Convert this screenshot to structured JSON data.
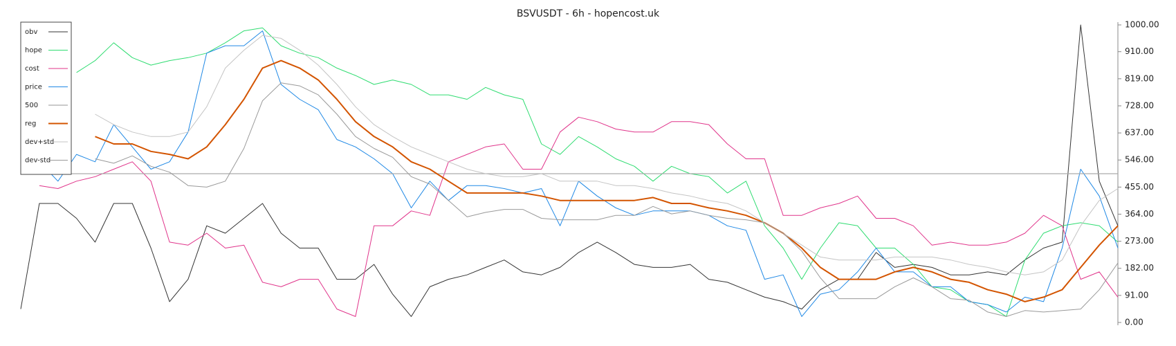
{
  "chart_data": {
    "type": "line",
    "title": "BSVUSDT - 6h - hopencost.uk",
    "ylim": [
      0,
      1000
    ],
    "yticks": [
      {
        "value": 0,
        "label": "0.00"
      },
      {
        "value": 91,
        "label": "91.00"
      },
      {
        "value": 182,
        "label": "182.00"
      },
      {
        "value": 273,
        "label": "273.00"
      },
      {
        "value": 364,
        "label": "364.00"
      },
      {
        "value": 455,
        "label": "455.00"
      },
      {
        "value": 546,
        "label": "546.00"
      },
      {
        "value": 637,
        "label": "637.00"
      },
      {
        "value": 728,
        "label": "728.00"
      },
      {
        "value": 819,
        "label": "819.00"
      },
      {
        "value": 910,
        "label": "910.00"
      },
      {
        "value": 1000,
        "label": "1000.00"
      }
    ],
    "y_axis_side": "right",
    "grid": false,
    "legend": "top-left",
    "series": [
      {
        "name": "obv",
        "color": "#333333",
        "width": 1,
        "values": [
          45,
          400,
          400,
          350,
          270,
          400,
          400,
          250,
          70,
          145,
          325,
          300,
          350,
          400,
          300,
          250,
          250,
          145,
          145,
          195,
          95,
          20,
          120,
          145,
          160,
          185,
          210,
          170,
          160,
          185,
          235,
          270,
          235,
          195,
          185,
          185,
          195,
          145,
          135,
          110,
          85,
          70,
          45,
          110,
          145,
          145,
          235,
          185,
          195,
          185,
          160,
          160,
          170,
          160,
          210,
          250,
          270,
          1000,
          475,
          325
        ]
      },
      {
        "name": "hope",
        "color": "#2edc70",
        "width": 1,
        "values": [
          null,
          null,
          null,
          840,
          880,
          940,
          890,
          865,
          880,
          890,
          905,
          940,
          980,
          990,
          930,
          905,
          890,
          855,
          830,
          800,
          815,
          800,
          765,
          765,
          750,
          790,
          765,
          750,
          600,
          565,
          625,
          590,
          550,
          525,
          475,
          525,
          500,
          490,
          435,
          475,
          325,
          250,
          145,
          250,
          335,
          325,
          250,
          250,
          195,
          120,
          110,
          70,
          60,
          20,
          210,
          300,
          325,
          335,
          325,
          270
        ]
      },
      {
        "name": "cost",
        "color": "#e0338a",
        "width": 1,
        "values": [
          null,
          460,
          450,
          475,
          490,
          515,
          540,
          475,
          270,
          260,
          300,
          250,
          260,
          135,
          120,
          145,
          145,
          45,
          20,
          325,
          325,
          375,
          360,
          540,
          565,
          590,
          600,
          515,
          515,
          640,
          690,
          675,
          650,
          640,
          640,
          675,
          675,
          665,
          600,
          550,
          550,
          360,
          360,
          385,
          400,
          425,
          350,
          350,
          325,
          260,
          270,
          260,
          260,
          270,
          300,
          360,
          325,
          145,
          170,
          85
        ]
      },
      {
        "name": "price",
        "color": "#1e88e5",
        "width": 1,
        "values": [
          null,
          540,
          475,
          565,
          540,
          665,
          590,
          515,
          540,
          640,
          905,
          930,
          930,
          980,
          800,
          750,
          715,
          615,
          590,
          550,
          500,
          385,
          475,
          410,
          460,
          460,
          450,
          435,
          450,
          325,
          475,
          425,
          385,
          360,
          375,
          375,
          375,
          360,
          325,
          310,
          145,
          160,
          20,
          95,
          110,
          170,
          250,
          170,
          170,
          120,
          120,
          70,
          60,
          35,
          85,
          70,
          250,
          515,
          425,
          250
        ]
      },
      {
        "name": "500",
        "color": "#aaaaaa",
        "width": 1.2,
        "values": [
          500,
          500,
          500,
          500,
          500,
          500,
          500,
          500,
          500,
          500,
          500,
          500,
          500,
          500,
          500,
          500,
          500,
          500,
          500,
          500,
          500,
          500,
          500,
          500,
          500,
          500,
          500,
          500,
          500,
          500,
          500,
          500,
          500,
          500,
          500,
          500,
          500,
          500,
          500,
          500,
          500,
          500,
          500,
          500,
          500,
          500,
          500,
          500,
          500,
          500,
          500,
          500,
          500,
          500,
          500,
          500,
          500,
          500,
          500,
          500
        ]
      },
      {
        "name": "reg",
        "color": "#d35400",
        "width": 2,
        "values": [
          null,
          null,
          null,
          null,
          625,
          600,
          600,
          575,
          565,
          550,
          590,
          665,
          750,
          855,
          880,
          855,
          815,
          750,
          675,
          625,
          590,
          540,
          515,
          475,
          435,
          435,
          435,
          435,
          425,
          410,
          410,
          410,
          410,
          410,
          420,
          400,
          400,
          385,
          375,
          360,
          335,
          300,
          250,
          185,
          145,
          145,
          145,
          170,
          185,
          170,
          145,
          135,
          110,
          95,
          70,
          85,
          110,
          185,
          260,
          325
        ]
      },
      {
        "name": "dev+std",
        "color": "#c4c4c4",
        "width": 1,
        "values": [
          null,
          null,
          null,
          null,
          700,
          665,
          640,
          625,
          625,
          640,
          725,
          855,
          915,
          965,
          955,
          915,
          865,
          800,
          725,
          665,
          625,
          590,
          565,
          540,
          515,
          500,
          490,
          490,
          500,
          475,
          475,
          475,
          460,
          460,
          450,
          435,
          425,
          410,
          400,
          375,
          335,
          300,
          260,
          220,
          210,
          210,
          210,
          220,
          220,
          220,
          210,
          195,
          185,
          170,
          160,
          170,
          210,
          325,
          410,
          450
        ]
      },
      {
        "name": "dev-std",
        "color": "#999999",
        "width": 1,
        "values": [
          null,
          null,
          null,
          null,
          550,
          535,
          560,
          525,
          505,
          460,
          455,
          475,
          585,
          745,
          805,
          795,
          765,
          700,
          625,
          585,
          555,
          490,
          465,
          410,
          355,
          370,
          380,
          380,
          350,
          345,
          345,
          345,
          360,
          360,
          390,
          365,
          375,
          360,
          350,
          345,
          335,
          300,
          240,
          150,
          80,
          80,
          80,
          120,
          150,
          120,
          80,
          75,
          35,
          20,
          40,
          35,
          40,
          45,
          110,
          200
        ]
      }
    ]
  }
}
